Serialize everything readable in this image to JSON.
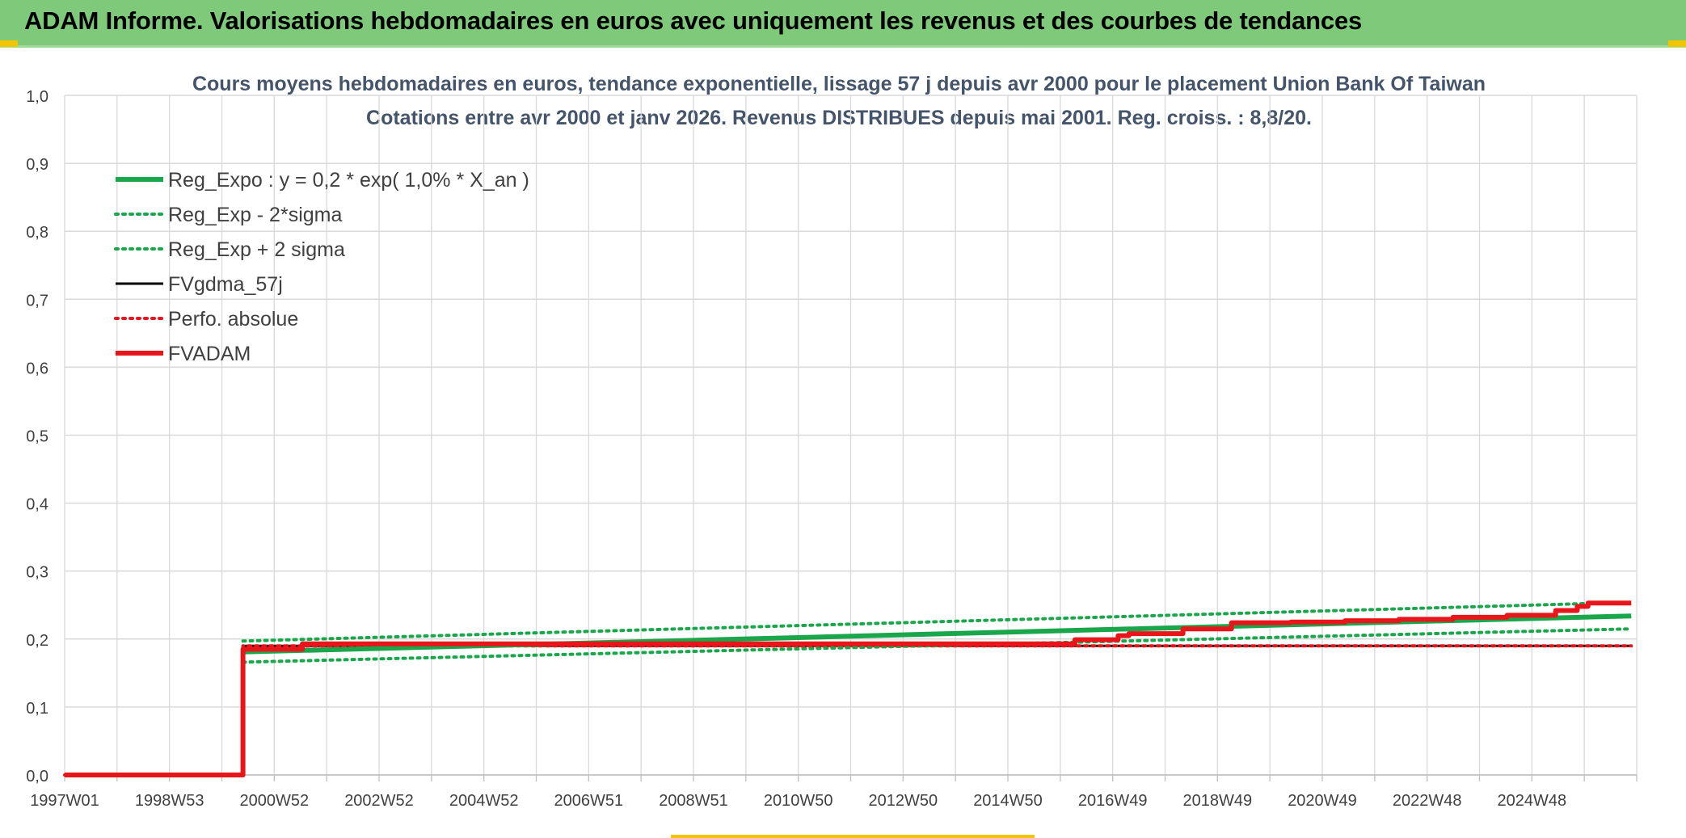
{
  "header": {
    "title": "ADAM Informe. Valorisations hebdomadaires en euros avec uniquement les revenus et des courbes de tendances"
  },
  "colors": {
    "banner": "#7ec97a",
    "accent_corner": "#f2c500",
    "green": "#1aa64a",
    "red": "#e8151b",
    "black": "#000000",
    "grid": "#d9d9d9"
  },
  "chart_data": {
    "type": "line",
    "title": "Cours moyens hebdomadaires en euros, tendance exponentielle, lissage 57 j depuis avr 2000 pour le placement Union Bank Of Taiwan",
    "subtitle": "Cotations entre avr 2000 et janv 2026. Revenus DISTRIBUES depuis mai 2001. Reg. croiss. : 8,8/20.",
    "xlabel": "",
    "ylabel": "",
    "x_tick_labels": [
      "1997W01",
      "1998W53",
      "2000W52",
      "2002W52",
      "2004W52",
      "2006W51",
      "2008W51",
      "2010W50",
      "2012W50",
      "2014W50",
      "2016W49",
      "2018W49",
      "2020W49",
      "2022W48",
      "2024W48"
    ],
    "y_tick_labels": [
      "0,0",
      "0,1",
      "0,2",
      "0,3",
      "0,4",
      "0,5",
      "0,6",
      "0,7",
      "0,8",
      "0,9",
      "1,0"
    ],
    "xlim": [
      1997.0,
      2026.1
    ],
    "ylim": [
      0,
      1
    ],
    "grid": true,
    "legend_position": "top-left",
    "series": [
      {
        "name": "Reg_Expo : y = 0,2 * exp( 1,0% *  X_an )",
        "color": "#1aa64a",
        "style": "solid-thick",
        "x": [
          2000.3,
          2026.0
        ],
        "y": [
          0.181,
          0.234
        ]
      },
      {
        "name": "Reg_Exp - 2*sigma",
        "color": "#1aa64a",
        "style": "dotted",
        "x": [
          2000.3,
          2026.0
        ],
        "y": [
          0.166,
          0.215
        ]
      },
      {
        "name": "Reg_Exp + 2 sigma",
        "color": "#1aa64a",
        "style": "dotted",
        "x": [
          2000.3,
          2026.0
        ],
        "y": [
          0.197,
          0.254
        ]
      },
      {
        "name": "FVgdma_57j",
        "color": "#000000",
        "style": "solid",
        "x": [
          1997.0,
          2000.3,
          2000.3,
          2026.0
        ],
        "y": [
          0.0,
          0.0,
          0.19,
          0.19
        ]
      },
      {
        "name": "Perfo. absolue",
        "color": "#e8151b",
        "style": "dotted",
        "x": [
          1997.0,
          2000.3,
          2000.3,
          2026.0
        ],
        "y": [
          0.0,
          0.0,
          0.19,
          0.19
        ]
      },
      {
        "name": "FVADAM",
        "color": "#e8151b",
        "style": "solid-thick",
        "x": [
          1997.0,
          2000.3,
          2000.3,
          2001.4,
          2001.4,
          2015.7,
          2015.7,
          2016.5,
          2016.5,
          2016.7,
          2016.7,
          2017.7,
          2017.7,
          2018.6,
          2018.6,
          2019.7,
          2019.7,
          2020.7,
          2020.7,
          2021.7,
          2021.7,
          2022.7,
          2022.7,
          2023.7,
          2023.7,
          2024.6,
          2024.6,
          2025.0,
          2025.0,
          2025.2,
          2025.2,
          2026.0
        ],
        "y": [
          0.0,
          0.0,
          0.185,
          0.185,
          0.193,
          0.193,
          0.199,
          0.199,
          0.205,
          0.205,
          0.208,
          0.208,
          0.215,
          0.215,
          0.224,
          0.224,
          0.225,
          0.225,
          0.227,
          0.227,
          0.229,
          0.229,
          0.232,
          0.232,
          0.235,
          0.235,
          0.242,
          0.242,
          0.248,
          0.248,
          0.253,
          0.253
        ]
      }
    ]
  }
}
